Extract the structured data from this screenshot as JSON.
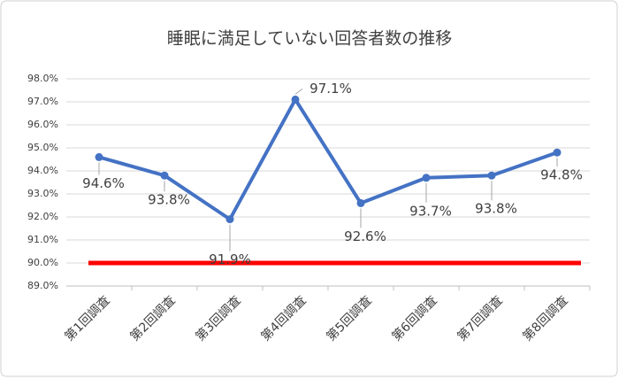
{
  "chart_data": {
    "type": "line",
    "title": "睡眠に満足していない回答者数の推移",
    "categories": [
      "第1回調査",
      "第2回調査",
      "第3回調査",
      "第4回調査",
      "第5回調査",
      "第6回調査",
      "第7回調査",
      "第8回調査"
    ],
    "values": [
      94.6,
      93.8,
      91.9,
      97.1,
      92.6,
      93.7,
      93.8,
      94.8
    ],
    "value_labels": [
      "94.6%",
      "93.8%",
      "91.9%",
      "97.1%",
      "92.6%",
      "93.7%",
      "93.8%",
      "94.8%"
    ],
    "color": "#4472c4",
    "ylim": [
      89,
      98
    ],
    "yticks": [
      {
        "value": 89,
        "label": "89.0%"
      },
      {
        "value": 90,
        "label": "90.0%"
      },
      {
        "value": 91,
        "label": "91.0%"
      },
      {
        "value": 92,
        "label": "92.0%"
      },
      {
        "value": 93,
        "label": "93.0%"
      },
      {
        "value": 94,
        "label": "94.0%"
      },
      {
        "value": 95,
        "label": "95.0%"
      },
      {
        "value": 96,
        "label": "96.0%"
      },
      {
        "value": 97,
        "label": "97.0%"
      },
      {
        "value": 98,
        "label": "98.0%"
      }
    ],
    "grid": true,
    "reference_line": {
      "value": 90,
      "color": "#ff0000"
    }
  }
}
